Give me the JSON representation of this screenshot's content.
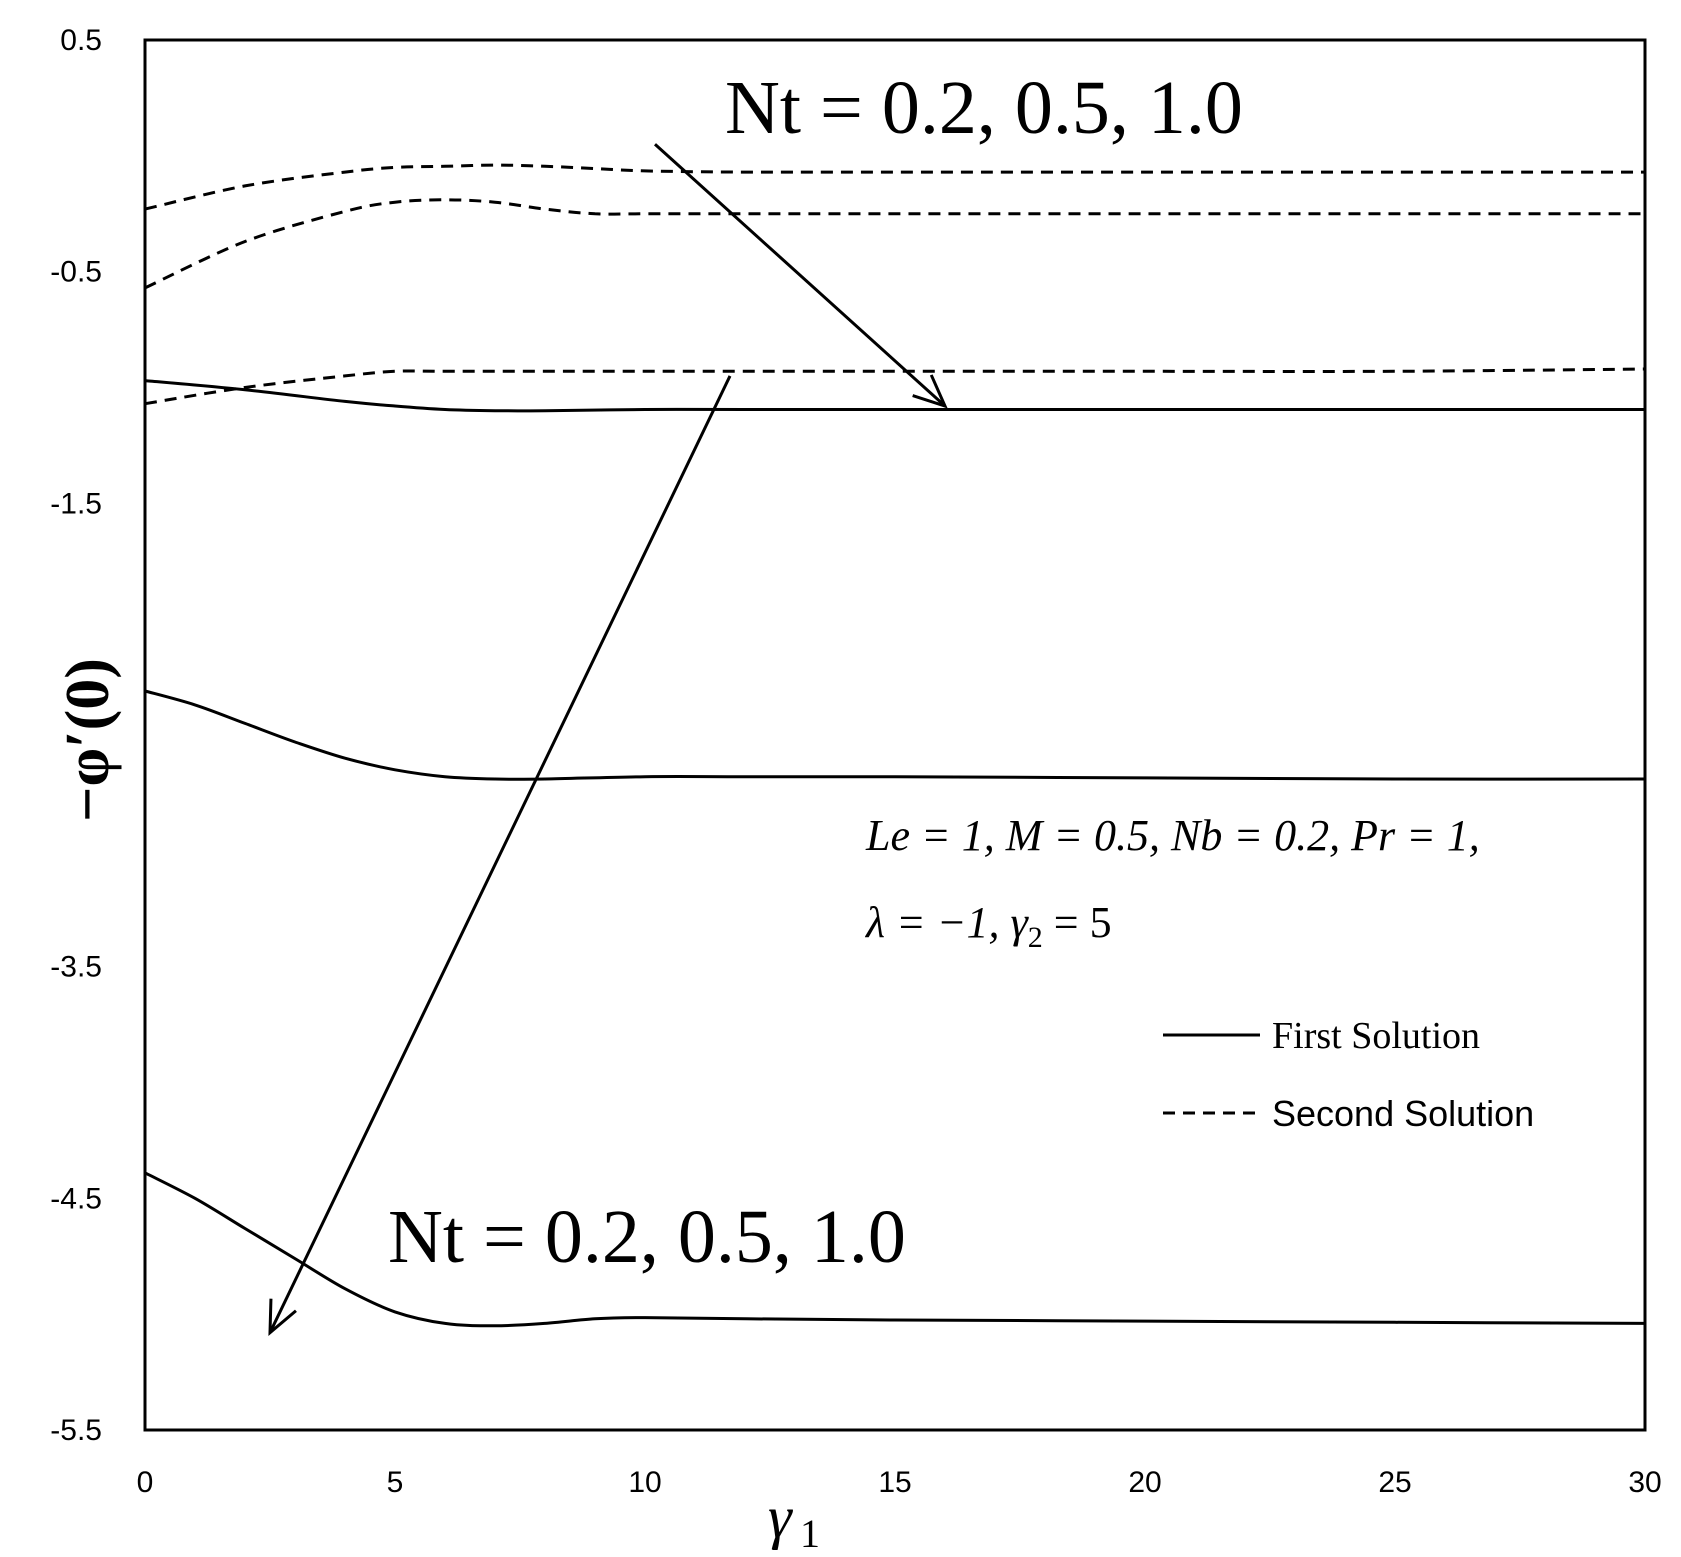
{
  "chart_data": {
    "type": "line",
    "xlabel": "γ",
    "xlabel_sub": "1",
    "ylabel": "−φ′(0)",
    "xlim": [
      0,
      30
    ],
    "ylim": [
      -5.5,
      0.5
    ],
    "xticks": [
      0,
      5,
      10,
      15,
      20,
      25,
      30
    ],
    "yticks": [
      0.5,
      -0.5,
      -1.5,
      -2.5,
      -3.5,
      -4.5,
      -5.5
    ],
    "ytick_labels": [
      "0.5",
      "-0.5",
      "-1.5",
      "",
      "-3.5",
      "-4.5",
      "-5.5"
    ],
    "grid": false,
    "legend_position": "right",
    "legend": [
      {
        "label": "First Solution",
        "style": "solid"
      },
      {
        "label": "Second Solution",
        "style": "dashed"
      }
    ],
    "annotations": {
      "top_arrow_label": "Nt = 0.2, 0.5, 1.0",
      "bottom_arrow_label": "Nt = 0.2, 0.5, 1.0",
      "params_line1": "Le = 1,  M = 0.5,  Nb = 0.2,  Pr = 1,",
      "params_line2_a": "λ = −1,  γ",
      "params_line2_sub": "2",
      "params_line2_b": " = 5"
    },
    "series": [
      {
        "name": "Second Solution, Nt = 0.2",
        "style": "dashed",
        "x": [
          0,
          2,
          4,
          5,
          6,
          7,
          8,
          9,
          10,
          12,
          15,
          20,
          25,
          30
        ],
        "y": [
          -0.23,
          -0.13,
          -0.07,
          -0.05,
          -0.045,
          -0.04,
          -0.045,
          -0.055,
          -0.065,
          -0.07,
          -0.07,
          -0.07,
          -0.07,
          -0.07
        ]
      },
      {
        "name": "Second Solution, Nt = 0.5",
        "style": "dashed",
        "x": [
          0,
          2,
          4,
          5,
          6,
          7,
          8,
          9,
          10,
          12,
          15,
          20,
          25,
          30
        ],
        "y": [
          -0.57,
          -0.37,
          -0.24,
          -0.2,
          -0.19,
          -0.2,
          -0.23,
          -0.25,
          -0.25,
          -0.25,
          -0.25,
          -0.25,
          -0.25,
          -0.25
        ]
      },
      {
        "name": "Second Solution, Nt = 1.0",
        "style": "dashed",
        "x": [
          0,
          2,
          4,
          5,
          6,
          8,
          10,
          15,
          20,
          25,
          30
        ],
        "y": [
          -1.07,
          -1.0,
          -0.95,
          -0.93,
          -0.93,
          -0.93,
          -0.93,
          -0.93,
          -0.93,
          -0.93,
          -0.92
        ]
      },
      {
        "name": "First Solution, Nt = 0.2",
        "style": "solid",
        "x": [
          0,
          2,
          4,
          5,
          6,
          7,
          8,
          10,
          12,
          15,
          20,
          25,
          30
        ],
        "y": [
          -0.97,
          -1.01,
          -1.06,
          -1.08,
          -1.095,
          -1.1,
          -1.1,
          -1.095,
          -1.095,
          -1.095,
          -1.095,
          -1.095,
          -1.095
        ]
      },
      {
        "name": "First Solution, Nt = 0.5",
        "style": "solid",
        "x": [
          0,
          1,
          2,
          3,
          4,
          5,
          6,
          7,
          8,
          10,
          12,
          15,
          20,
          25,
          30
        ],
        "y": [
          -2.31,
          -2.37,
          -2.45,
          -2.53,
          -2.6,
          -2.65,
          -2.68,
          -2.69,
          -2.69,
          -2.68,
          -2.68,
          -2.68,
          -2.685,
          -2.69,
          -2.69
        ]
      },
      {
        "name": "First Solution, Nt = 1.0",
        "style": "solid",
        "x": [
          0,
          1,
          2,
          3,
          4,
          5,
          6,
          7,
          8,
          9,
          10,
          12,
          15,
          20,
          25,
          30
        ],
        "y": [
          -4.39,
          -4.5,
          -4.63,
          -4.76,
          -4.89,
          -4.99,
          -5.04,
          -5.05,
          -5.04,
          -5.02,
          -5.015,
          -5.02,
          -5.025,
          -5.03,
          -5.035,
          -5.04
        ]
      }
    ],
    "arrows": [
      {
        "from": [
          10.2,
          0.05
        ],
        "to": [
          16,
          -1.08
        ]
      },
      {
        "from": [
          11.7,
          -0.95
        ],
        "to": [
          2.5,
          -5.08
        ]
      }
    ]
  }
}
